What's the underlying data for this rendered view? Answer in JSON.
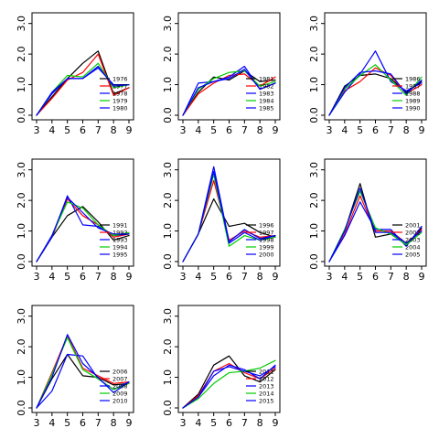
{
  "chart_data": [
    {
      "type": "line",
      "x": [
        3,
        4,
        5,
        6,
        7,
        8,
        9
      ],
      "xlim": [
        3,
        9
      ],
      "ylim": [
        0,
        3
      ],
      "xticks": [
        "3",
        "4",
        "5",
        "6",
        "7",
        "8",
        "9"
      ],
      "yticks": [
        "0.0",
        "1.0",
        "2.0",
        "3.0"
      ],
      "legend_position": "right",
      "series": [
        {
          "name": "1976",
          "color": "#000000",
          "values": [
            0.0,
            0.6,
            1.2,
            1.7,
            2.1,
            0.7,
            0.9
          ]
        },
        {
          "name": "1977",
          "color": "#ff0000",
          "values": [
            0.0,
            0.55,
            1.15,
            1.4,
            2.0,
            0.65,
            0.9
          ]
        },
        {
          "name": "1978",
          "color": "#0000ff",
          "values": [
            0.0,
            0.7,
            1.2,
            1.2,
            1.55,
            1.0,
            1.0
          ]
        },
        {
          "name": "1979",
          "color": "#00cc00",
          "values": [
            0.0,
            0.75,
            1.3,
            1.25,
            1.7,
            0.9,
            1.0
          ]
        },
        {
          "name": "1980",
          "color": "#0000ff",
          "values": [
            0.0,
            0.75,
            1.2,
            1.2,
            1.6,
            0.95,
            1.0
          ]
        }
      ]
    },
    {
      "type": "line",
      "x": [
        3,
        4,
        5,
        6,
        7,
        8,
        9
      ],
      "xlim": [
        3,
        9
      ],
      "ylim": [
        0,
        3
      ],
      "xticks": [
        "3",
        "4",
        "5",
        "6",
        "7",
        "8",
        "9"
      ],
      "yticks": [
        "0.0",
        "1.0",
        "2.0",
        "3.0"
      ],
      "legend_position": "right",
      "series": [
        {
          "name": "1981",
          "color": "#000000",
          "values": [
            0.0,
            0.75,
            1.25,
            1.15,
            1.45,
            1.1,
            1.15
          ]
        },
        {
          "name": "1982",
          "color": "#ff0000",
          "values": [
            0.0,
            0.7,
            1.05,
            1.3,
            1.35,
            0.95,
            1.25
          ]
        },
        {
          "name": "1983",
          "color": "#0000ff",
          "values": [
            0.0,
            1.05,
            1.1,
            1.25,
            1.6,
            0.85,
            1.05
          ]
        },
        {
          "name": "1984",
          "color": "#00cc00",
          "values": [
            0.0,
            0.85,
            1.2,
            1.4,
            1.45,
            0.95,
            1.1
          ]
        },
        {
          "name": "1985",
          "color": "#0000ff",
          "values": [
            0.0,
            0.9,
            1.1,
            1.2,
            1.5,
            0.85,
            1.05
          ]
        }
      ]
    },
    {
      "type": "line",
      "x": [
        3,
        4,
        5,
        6,
        7,
        8,
        9
      ],
      "xlim": [
        3,
        9
      ],
      "ylim": [
        0,
        3
      ],
      "xticks": [
        "3",
        "4",
        "5",
        "6",
        "7",
        "8",
        "9"
      ],
      "yticks": [
        "0.0",
        "1.0",
        "2.0",
        "3.0"
      ],
      "legend_position": "right",
      "series": [
        {
          "name": "1986",
          "color": "#000000",
          "values": [
            0.0,
            0.95,
            1.3,
            1.35,
            1.2,
            0.75,
            1.1
          ]
        },
        {
          "name": "1987",
          "color": "#ff0000",
          "values": [
            0.0,
            0.8,
            1.1,
            1.55,
            1.3,
            0.7,
            1.0
          ]
        },
        {
          "name": "1988",
          "color": "#0000ff",
          "values": [
            0.0,
            0.75,
            1.35,
            2.1,
            1.1,
            0.8,
            1.05
          ]
        },
        {
          "name": "1989",
          "color": "#00cc00",
          "values": [
            0.0,
            0.85,
            1.3,
            1.65,
            1.15,
            0.65,
            1.25
          ]
        },
        {
          "name": "1990",
          "color": "#0000ff",
          "values": [
            0.0,
            0.9,
            1.4,
            1.45,
            1.35,
            0.7,
            1.15
          ]
        }
      ]
    },
    {
      "type": "line",
      "x": [
        3,
        4,
        5,
        6,
        7,
        8,
        9
      ],
      "xlim": [
        3,
        9
      ],
      "ylim": [
        0,
        3
      ],
      "xticks": [
        "3",
        "4",
        "5",
        "6",
        "7",
        "8",
        "9"
      ],
      "yticks": [
        "0.0",
        "1.0",
        "2.0",
        "3.0"
      ],
      "legend_position": "right",
      "series": [
        {
          "name": "1991",
          "color": "#000000",
          "values": [
            0.0,
            0.8,
            1.5,
            1.8,
            1.3,
            0.7,
            0.85
          ]
        },
        {
          "name": "1992",
          "color": "#ff0000",
          "values": [
            0.0,
            0.8,
            2.05,
            1.5,
            1.2,
            0.8,
            0.9
          ]
        },
        {
          "name": "1993",
          "color": "#0000ff",
          "values": [
            0.0,
            0.8,
            2.15,
            1.2,
            1.15,
            0.85,
            0.9
          ]
        },
        {
          "name": "1994",
          "color": "#00cc00",
          "values": [
            0.0,
            0.85,
            1.95,
            1.75,
            1.2,
            0.85,
            0.95
          ]
        },
        {
          "name": "1995",
          "color": "#0000ff",
          "values": [
            0.0,
            0.85,
            2.1,
            1.6,
            1.1,
            0.9,
            0.9
          ]
        }
      ]
    },
    {
      "type": "line",
      "x": [
        3,
        4,
        5,
        6,
        7,
        8,
        9
      ],
      "xlim": [
        3,
        9
      ],
      "ylim": [
        0,
        3
      ],
      "xticks": [
        "3",
        "4",
        "5",
        "6",
        "7",
        "8",
        "9"
      ],
      "yticks": [
        "0.0",
        "1.0",
        "2.0",
        "3.0"
      ],
      "legend_position": "right",
      "series": [
        {
          "name": "1996",
          "color": "#000000",
          "values": [
            0.0,
            0.9,
            2.05,
            1.15,
            1.25,
            0.95,
            0.8
          ]
        },
        {
          "name": "1997",
          "color": "#ff0000",
          "values": [
            0.0,
            0.9,
            2.65,
            0.7,
            1.0,
            0.8,
            0.85
          ]
        },
        {
          "name": "1998",
          "color": "#0000ff",
          "values": [
            0.0,
            0.9,
            3.1,
            0.65,
            1.05,
            0.75,
            0.85
          ]
        },
        {
          "name": "1999",
          "color": "#00cc00",
          "values": [
            0.0,
            0.9,
            2.85,
            0.5,
            0.85,
            0.7,
            0.8
          ]
        },
        {
          "name": "2000",
          "color": "#0000ff",
          "values": [
            0.0,
            0.9,
            2.95,
            0.6,
            0.95,
            0.7,
            0.85
          ]
        }
      ]
    },
    {
      "type": "line",
      "x": [
        3,
        4,
        5,
        6,
        7,
        8,
        9
      ],
      "xlim": [
        3,
        9
      ],
      "ylim": [
        0,
        3
      ],
      "xticks": [
        "3",
        "4",
        "5",
        "6",
        "7",
        "8",
        "9"
      ],
      "yticks": [
        "0.0",
        "1.0",
        "2.0",
        "3.0"
      ],
      "legend_position": "right",
      "series": [
        {
          "name": "2001",
          "color": "#000000",
          "values": [
            0.0,
            1.0,
            2.55,
            0.8,
            0.9,
            0.55,
            1.1
          ]
        },
        {
          "name": "2002",
          "color": "#ff0000",
          "values": [
            0.0,
            0.9,
            2.15,
            1.0,
            1.0,
            0.6,
            1.05
          ]
        },
        {
          "name": "2003",
          "color": "#0000ff",
          "values": [
            0.0,
            0.85,
            1.95,
            1.05,
            1.05,
            0.5,
            1.15
          ]
        },
        {
          "name": "2004",
          "color": "#00cc00",
          "values": [
            0.0,
            1.05,
            2.3,
            1.1,
            0.9,
            0.55,
            0.95
          ]
        },
        {
          "name": "2005",
          "color": "#0000ff",
          "values": [
            0.0,
            1.0,
            2.4,
            0.95,
            0.95,
            0.6,
            1.0
          ]
        }
      ]
    },
    {
      "type": "line",
      "x": [
        3,
        4,
        5,
        6,
        7,
        8,
        9
      ],
      "xlim": [
        3,
        9
      ],
      "ylim": [
        0,
        3
      ],
      "xticks": [
        "3",
        "4",
        "5",
        "6",
        "7",
        "8",
        "9"
      ],
      "yticks": [
        "0.0",
        "1.0",
        "2.0",
        "3.0"
      ],
      "legend_position": "right",
      "series": [
        {
          "name": "2006",
          "color": "#000000",
          "values": [
            0.0,
            0.95,
            1.75,
            1.05,
            1.0,
            0.75,
            0.8
          ]
        },
        {
          "name": "2007",
          "color": "#ff0000",
          "values": [
            0.0,
            1.15,
            2.35,
            1.3,
            1.05,
            0.8,
            0.85
          ]
        },
        {
          "name": "2008",
          "color": "#0000ff",
          "values": [
            0.0,
            0.55,
            1.75,
            1.7,
            0.95,
            0.6,
            0.85
          ]
        },
        {
          "name": "2009",
          "color": "#00cc00",
          "values": [
            0.0,
            1.1,
            2.3,
            1.25,
            0.95,
            0.6,
            0.8
          ]
        },
        {
          "name": "2010",
          "color": "#0000ff",
          "values": [
            0.0,
            1.0,
            2.4,
            1.45,
            1.0,
            0.5,
            0.85
          ]
        }
      ]
    },
    {
      "type": "line",
      "x": [
        3,
        4,
        5,
        6,
        7,
        8,
        9
      ],
      "xlim": [
        3,
        9
      ],
      "ylim": [
        0,
        3
      ],
      "xticks": [
        "3",
        "4",
        "5",
        "6",
        "7",
        "8",
        "9"
      ],
      "yticks": [
        "0.0",
        "1.0",
        "2.0",
        "3.0"
      ],
      "legend_position": "right",
      "series": [
        {
          "name": "2011",
          "color": "#000000",
          "values": [
            0.0,
            0.45,
            1.4,
            1.7,
            1.05,
            0.85,
            1.25
          ]
        },
        {
          "name": "2012",
          "color": "#ff0000",
          "values": [
            0.0,
            0.4,
            1.2,
            1.45,
            1.15,
            0.95,
            1.3
          ]
        },
        {
          "name": "2013",
          "color": "#0000ff",
          "values": [
            0.0,
            0.35,
            1.05,
            1.4,
            1.25,
            0.95,
            1.4
          ]
        },
        {
          "name": "2014",
          "color": "#00cc00",
          "values": [
            0.0,
            0.3,
            0.8,
            1.15,
            1.2,
            1.3,
            1.55
          ]
        },
        {
          "name": "2015",
          "color": "#0000ff",
          "values": [
            0.0,
            0.35,
            1.2,
            1.35,
            1.2,
            1.05,
            1.35
          ]
        }
      ]
    }
  ]
}
